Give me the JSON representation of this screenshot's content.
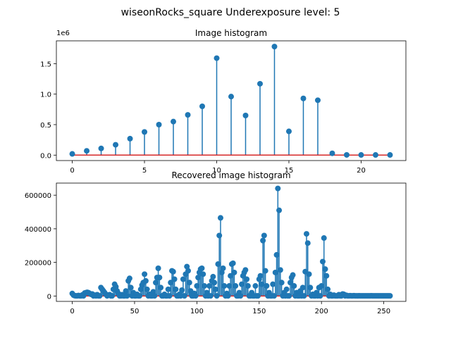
{
  "figure": {
    "suptitle": "wiseonRocks_square Underexposure level: 5"
  },
  "chart_data": [
    {
      "type": "stem",
      "title": "Image histogram",
      "xlabel": "",
      "ylabel": "",
      "offset_text": "1e6",
      "xlim": [
        -1.1,
        23.1
      ],
      "ylim": [
        -0.089,
        1.874
      ],
      "xticks": [
        0,
        5,
        10,
        15,
        20
      ],
      "yticks": [
        0.0,
        0.5,
        1.0,
        1.5
      ],
      "ytick_labels": [
        "0.0",
        "0.5",
        "1.0",
        "1.5"
      ],
      "x": [
        0,
        1,
        2,
        3,
        4,
        5,
        6,
        7,
        8,
        9,
        10,
        11,
        12,
        13,
        14,
        15,
        16,
        17,
        18,
        19,
        20,
        21,
        22
      ],
      "y": [
        0.02,
        0.07,
        0.11,
        0.17,
        0.27,
        0.38,
        0.5,
        0.55,
        0.66,
        0.8,
        1.59,
        0.96,
        0.65,
        1.17,
        1.78,
        0.39,
        0.93,
        0.9,
        0.03,
        0.004,
        0.003,
        0.003,
        0.003
      ],
      "colors": {
        "stem": "#1f77b4",
        "baseline": "#d62728"
      }
    },
    {
      "type": "stem",
      "title": "Recovered image histogram",
      "xlabel": "",
      "ylabel": "",
      "xlim": [
        -12.75,
        267.75
      ],
      "ylim": [
        -32000,
        672000
      ],
      "xticks": [
        0,
        50,
        100,
        150,
        200,
        250
      ],
      "yticks": [
        0,
        200000,
        400000,
        600000
      ],
      "ytick_labels": [
        "0",
        "200000",
        "400000",
        "600000"
      ],
      "peaks": [
        [
          0,
          15000
        ],
        [
          1,
          5000
        ],
        [
          2,
          2000
        ],
        [
          3,
          1000
        ],
        [
          5,
          3000
        ],
        [
          8,
          6000
        ],
        [
          10,
          18000
        ],
        [
          11,
          20000
        ],
        [
          12,
          22000
        ],
        [
          13,
          20000
        ],
        [
          14,
          15000
        ],
        [
          15,
          10000
        ],
        [
          16,
          12000
        ],
        [
          18,
          5000
        ],
        [
          20,
          8000
        ],
        [
          23,
          50000
        ],
        [
          24,
          40000
        ],
        [
          25,
          30000
        ],
        [
          26,
          20000
        ],
        [
          27,
          10000
        ],
        [
          29,
          5000
        ],
        [
          30,
          8000
        ],
        [
          33,
          40000
        ],
        [
          34,
          70000
        ],
        [
          35,
          55000
        ],
        [
          36,
          30000
        ],
        [
          37,
          15000
        ],
        [
          40,
          8000
        ],
        [
          43,
          30000
        ],
        [
          45,
          90000
        ],
        [
          46,
          105000
        ],
        [
          47,
          50000
        ],
        [
          49,
          20000
        ],
        [
          52,
          10000
        ],
        [
          55,
          40000
        ],
        [
          56,
          65000
        ],
        [
          57,
          80000
        ],
        [
          58,
          130000
        ],
        [
          59,
          90000
        ],
        [
          60,
          40000
        ],
        [
          62,
          10000
        ],
        [
          65,
          25000
        ],
        [
          67,
          80000
        ],
        [
          68,
          110000
        ],
        [
          69,
          165000
        ],
        [
          70,
          110000
        ],
        [
          71,
          50000
        ],
        [
          74,
          10000
        ],
        [
          77,
          40000
        ],
        [
          79,
          80000
        ],
        [
          80,
          150000
        ],
        [
          81,
          145000
        ],
        [
          82,
          100000
        ],
        [
          83,
          40000
        ],
        [
          86,
          10000
        ],
        [
          88,
          35000
        ],
        [
          89,
          100000
        ],
        [
          91,
          130000
        ],
        [
          92,
          175000
        ],
        [
          93,
          150000
        ],
        [
          94,
          80000
        ],
        [
          95,
          30000
        ],
        [
          98,
          15000
        ],
        [
          100,
          60000
        ],
        [
          101,
          110000
        ],
        [
          102,
          140000
        ],
        [
          103,
          160000
        ],
        [
          104,
          165000
        ],
        [
          105,
          130000
        ],
        [
          106,
          60000
        ],
        [
          108,
          20000
        ],
        [
          110,
          60000
        ],
        [
          112,
          90000
        ],
        [
          113,
          115000
        ],
        [
          114,
          80000
        ],
        [
          115,
          40000
        ],
        [
          117,
          190000
        ],
        [
          118,
          360000
        ],
        [
          119,
          465000
        ],
        [
          120,
          140000
        ],
        [
          121,
          165000
        ],
        [
          122,
          60000
        ],
        [
          124,
          15000
        ],
        [
          126,
          60000
        ],
        [
          127,
          120000
        ],
        [
          128,
          190000
        ],
        [
          129,
          195000
        ],
        [
          130,
          140000
        ],
        [
          131,
          60000
        ],
        [
          134,
          20000
        ],
        [
          136,
          70000
        ],
        [
          137,
          120000
        ],
        [
          138,
          140000
        ],
        [
          139,
          155000
        ],
        [
          140,
          100000
        ],
        [
          141,
          60000
        ],
        [
          144,
          20000
        ],
        [
          147,
          60000
        ],
        [
          150,
          100000
        ],
        [
          151,
          120000
        ],
        [
          152,
          70000
        ],
        [
          153,
          330000
        ],
        [
          154,
          360000
        ],
        [
          155,
          150000
        ],
        [
          156,
          60000
        ],
        [
          158,
          20000
        ],
        [
          161,
          70000
        ],
        [
          163,
          140000
        ],
        [
          164,
          245000
        ],
        [
          165,
          640000
        ],
        [
          166,
          510000
        ],
        [
          167,
          155000
        ],
        [
          168,
          80000
        ],
        [
          170,
          20000
        ],
        [
          172,
          40000
        ],
        [
          175,
          80000
        ],
        [
          176,
          110000
        ],
        [
          177,
          125000
        ],
        [
          178,
          60000
        ],
        [
          180,
          20000
        ],
        [
          183,
          30000
        ],
        [
          185,
          50000
        ],
        [
          187,
          145000
        ],
        [
          188,
          370000
        ],
        [
          189,
          315000
        ],
        [
          190,
          130000
        ],
        [
          191,
          50000
        ],
        [
          193,
          10000
        ],
        [
          196,
          20000
        ],
        [
          198,
          50000
        ],
        [
          200,
          60000
        ],
        [
          201,
          205000
        ],
        [
          202,
          345000
        ],
        [
          203,
          160000
        ],
        [
          204,
          120000
        ],
        [
          205,
          40000
        ],
        [
          207,
          10000
        ],
        [
          210,
          5000
        ],
        [
          214,
          8000
        ],
        [
          217,
          12000
        ],
        [
          218,
          10000
        ],
        [
          220,
          4000
        ],
        [
          223,
          2000
        ],
        [
          226,
          2000
        ],
        [
          230,
          1500
        ],
        [
          235,
          1000
        ],
        [
          240,
          1500
        ],
        [
          245,
          1000
        ],
        [
          250,
          1000
        ],
        [
          255,
          1000
        ]
      ],
      "colors": {
        "stem": "#1f77b4",
        "baseline": "#d62728"
      }
    }
  ]
}
